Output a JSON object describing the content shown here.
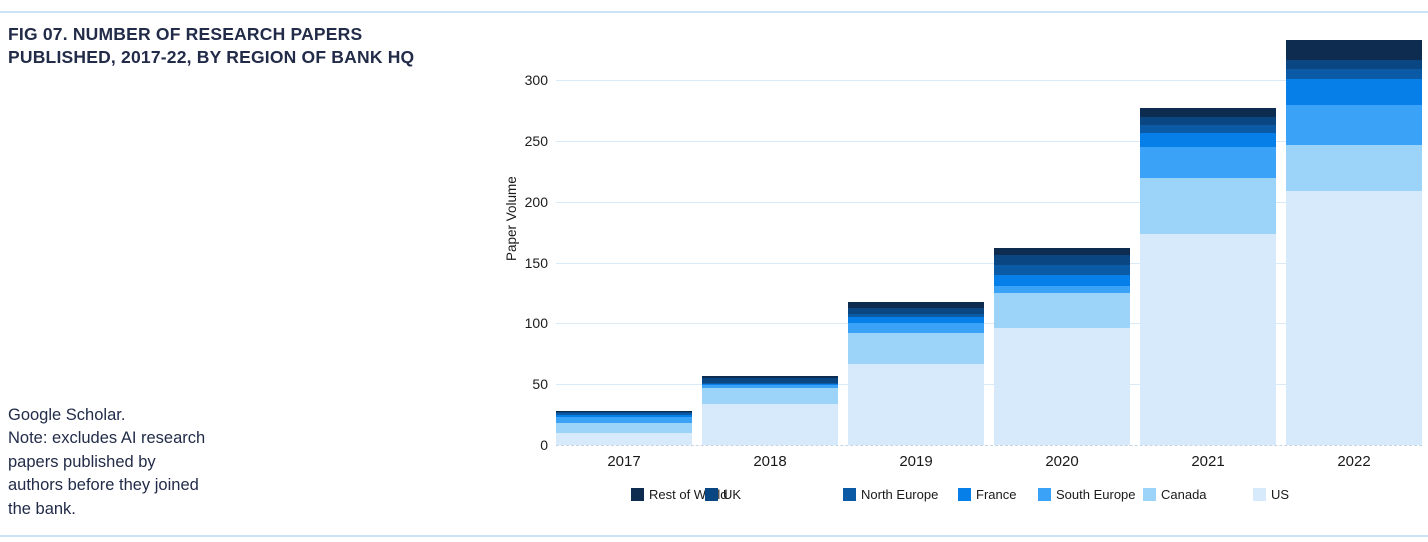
{
  "figure": {
    "title": "FIG 07. NUMBER OF RESEARCH PAPERS PUBLISHED, 2017-22, BY REGION OF BANK HQ",
    "note_lines": [
      "Google Scholar.",
      "Note: excludes AI research",
      "papers published by",
      "authors before they joined",
      "the bank."
    ]
  },
  "chart_data": {
    "type": "bar",
    "stacked": true,
    "title": "FIG 07. NUMBER OF RESEARCH PAPERS PUBLISHED, 2017-22, BY REGION OF BANK HQ",
    "xlabel": "",
    "ylabel": "Paper Volume",
    "categories": [
      "2017",
      "2018",
      "2019",
      "2020",
      "2021",
      "2022"
    ],
    "series": [
      {
        "name": "Rest of World",
        "color": "#0d2c50",
        "values": [
          1,
          2,
          5,
          6,
          7,
          16
        ]
      },
      {
        "name": "UK",
        "color": "#0a4682",
        "values": [
          1,
          4,
          5,
          8,
          7,
          8
        ]
      },
      {
        "name": "North Europe",
        "color": "#0b5aa5",
        "values": [
          1,
          1,
          3,
          8,
          6,
          8
        ]
      },
      {
        "name": "France",
        "color": "#0680e8",
        "values": [
          2,
          1,
          5,
          9,
          12,
          21
        ]
      },
      {
        "name": "South Europe",
        "color": "#3aa2f7",
        "values": [
          5,
          2,
          8,
          6,
          25,
          33
        ]
      },
      {
        "name": "Canada",
        "color": "#9cd3f8",
        "values": [
          8,
          13,
          25,
          29,
          46,
          38
        ]
      },
      {
        "name": "US",
        "color": "#d7eafc",
        "values": [
          10,
          34,
          67,
          96,
          174,
          209
        ]
      }
    ],
    "totals": [
      28,
      57,
      118,
      162,
      277,
      333
    ],
    "yticks": [
      0,
      50,
      100,
      150,
      200,
      250,
      300
    ],
    "ylim": [
      0,
      334
    ],
    "grid": true,
    "legend_position": "bottom"
  },
  "colors": {
    "rule": "#cbe3f6",
    "gridline": "#d9eaf8",
    "title_text": "#222c49"
  }
}
